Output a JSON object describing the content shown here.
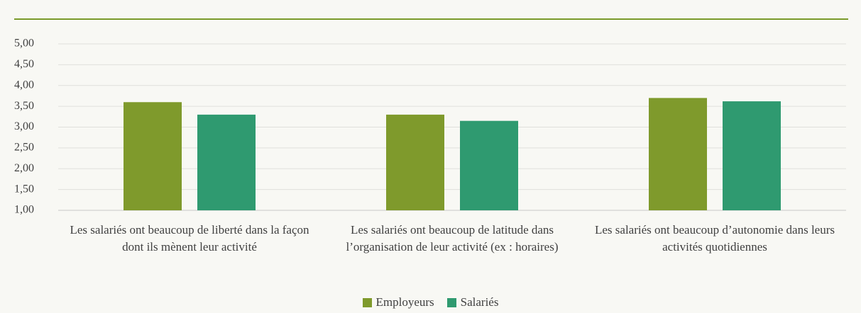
{
  "chart_data": {
    "type": "bar",
    "categories": [
      "Les salariés ont beaucoup de liberté dans la façon dont ils mènent leur activité",
      "Les salariés ont beaucoup de latitude dans l’organisation de leur activité (ex : horaires)",
      "Les salariés ont beaucoup d’autonomie dans leurs activités quotidiennes"
    ],
    "series": [
      {
        "name": "Employeurs",
        "color": "#7f9a2c",
        "values": [
          3.6,
          3.3,
          3.7
        ]
      },
      {
        "name": "Salariés",
        "color": "#2f9a70",
        "values": [
          3.3,
          3.15,
          3.62
        ]
      }
    ],
    "ylim": [
      1,
      5
    ],
    "yticks": [
      {
        "value": 1,
        "label": "1,00"
      },
      {
        "value": 1.5,
        "label": "1,50"
      },
      {
        "value": 2,
        "label": "2,00"
      },
      {
        "value": 2.5,
        "label": "2,50"
      },
      {
        "value": 3,
        "label": "3,00"
      },
      {
        "value": 3.5,
        "label": "3,50"
      },
      {
        "value": 4,
        "label": "4,00"
      },
      {
        "value": 4.5,
        "label": "4,50"
      },
      {
        "value": 5,
        "label": "5,00"
      }
    ],
    "grid": true,
    "legend": "bottom"
  }
}
